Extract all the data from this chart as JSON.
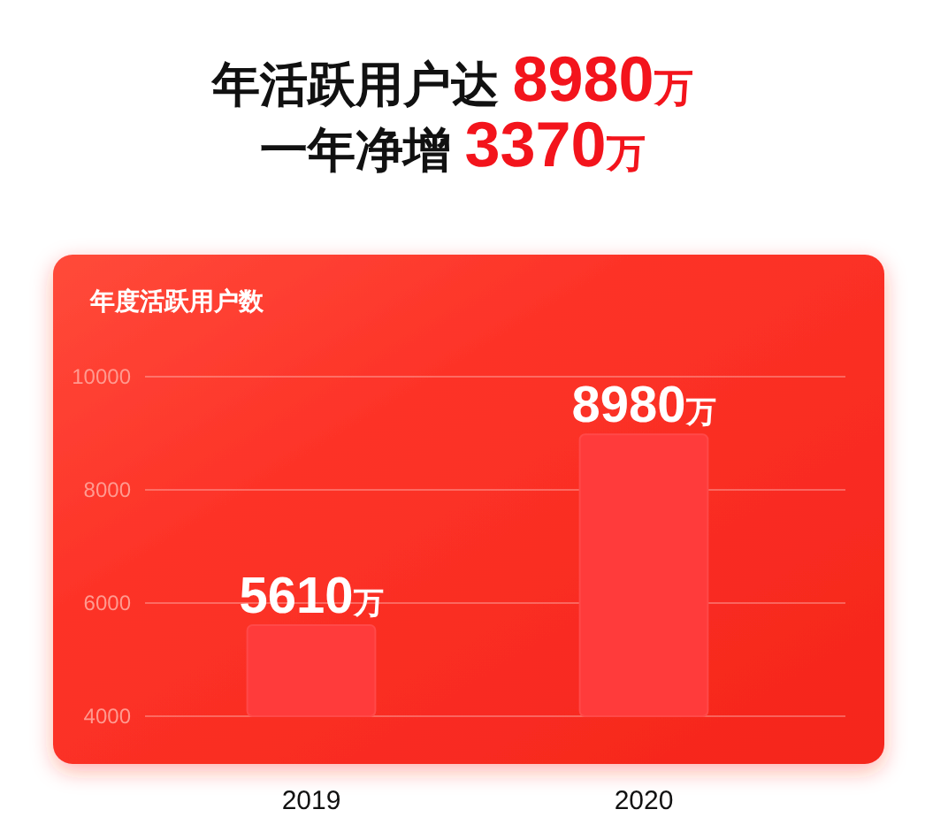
{
  "chart_data": {
    "type": "bar",
    "title": "年活跃用户达 8980万",
    "subtitle": "一年净增 3370万",
    "ylabel": "年度活跃用户数",
    "categories": [
      "2019",
      "2020"
    ],
    "values": [
      5610,
      8980
    ],
    "value_labels": [
      "5610万",
      "8980万"
    ],
    "color": "#ff3b3b",
    "ylim": [
      4000,
      10000
    ],
    "yticks": [
      4000,
      6000,
      8000,
      10000
    ],
    "grid": "y"
  }
}
